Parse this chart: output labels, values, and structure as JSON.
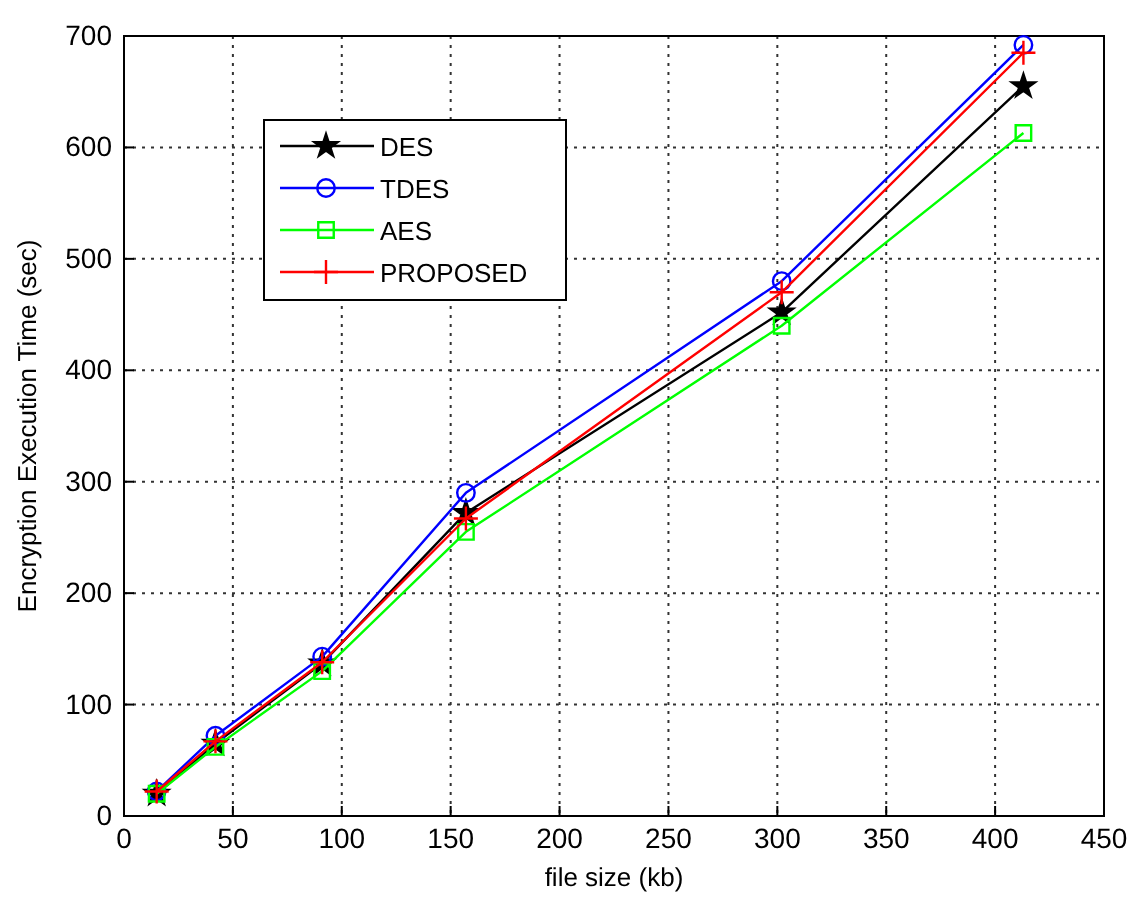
{
  "chart_data": {
    "type": "line",
    "xlabel": "file size (kb)",
    "ylabel": "Encryption Execution Time (sec)",
    "x": [
      15,
      42,
      91,
      157,
      302,
      413
    ],
    "xlim": [
      0,
      450
    ],
    "xticks": [
      0,
      50,
      100,
      150,
      200,
      250,
      300,
      350,
      400,
      450
    ],
    "ylim": [
      0,
      700
    ],
    "yticks": [
      0,
      100,
      200,
      300,
      400,
      500,
      600,
      700
    ],
    "grid": true,
    "legend": "top left",
    "series": [
      {
        "name": "DES",
        "color": "#000000",
        "marker": "star",
        "values": [
          20,
          65,
          137,
          272,
          452,
          655
        ]
      },
      {
        "name": "TDES",
        "color": "#0000ff",
        "marker": "circle",
        "values": [
          22,
          72,
          143,
          290,
          480,
          692
        ]
      },
      {
        "name": "AES",
        "color": "#00ff00",
        "marker": "square",
        "values": [
          20,
          62,
          130,
          255,
          440,
          613
        ]
      },
      {
        "name": "PROPOSED",
        "color": "#ff0000",
        "marker": "cross",
        "values": [
          22,
          67,
          138,
          267,
          470,
          685
        ]
      }
    ]
  }
}
